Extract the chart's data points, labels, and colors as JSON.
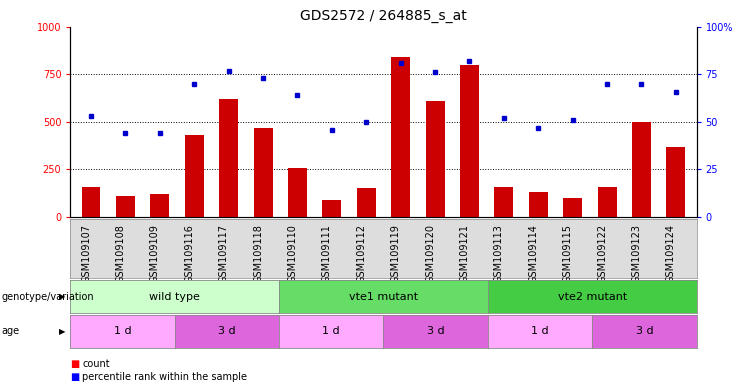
{
  "title": "GDS2572 / 264885_s_at",
  "samples": [
    "GSM109107",
    "GSM109108",
    "GSM109109",
    "GSM109116",
    "GSM109117",
    "GSM109118",
    "GSM109110",
    "GSM109111",
    "GSM109112",
    "GSM109119",
    "GSM109120",
    "GSM109121",
    "GSM109113",
    "GSM109114",
    "GSM109115",
    "GSM109122",
    "GSM109123",
    "GSM109124"
  ],
  "counts": [
    155,
    110,
    120,
    430,
    620,
    470,
    255,
    90,
    150,
    840,
    610,
    800,
    155,
    130,
    100,
    160,
    500,
    370
  ],
  "percentiles": [
    53,
    44,
    44,
    70,
    77,
    73,
    64,
    46,
    50,
    81,
    76,
    82,
    52,
    47,
    51,
    70,
    70,
    66
  ],
  "genotype_groups": [
    {
      "label": "wild type",
      "start": 0,
      "end": 6,
      "color": "#ccffcc"
    },
    {
      "label": "vte1 mutant",
      "start": 6,
      "end": 12,
      "color": "#66dd66"
    },
    {
      "label": "vte2 mutant",
      "start": 12,
      "end": 18,
      "color": "#44cc44"
    }
  ],
  "age_groups": [
    {
      "label": "1 d",
      "start": 0,
      "end": 3,
      "color": "#ffaaff"
    },
    {
      "label": "3 d",
      "start": 3,
      "end": 6,
      "color": "#dd66dd"
    },
    {
      "label": "1 d",
      "start": 6,
      "end": 9,
      "color": "#ffaaff"
    },
    {
      "label": "3 d",
      "start": 9,
      "end": 12,
      "color": "#dd66dd"
    },
    {
      "label": "1 d",
      "start": 12,
      "end": 15,
      "color": "#ffaaff"
    },
    {
      "label": "3 d",
      "start": 15,
      "end": 18,
      "color": "#dd66dd"
    }
  ],
  "bar_color": "#cc0000",
  "dot_color": "#0000cc",
  "ylim_left": [
    0,
    1000
  ],
  "ylim_right": [
    0,
    100
  ],
  "yticks_left": [
    0,
    250,
    500,
    750,
    1000
  ],
  "ytick_labels_left": [
    "0",
    "250",
    "500",
    "750",
    "1000"
  ],
  "yticks_right": [
    0,
    25,
    50,
    75,
    100
  ],
  "ytick_labels_right": [
    "0",
    "25",
    "50",
    "75",
    "100%"
  ],
  "background_color": "#ffffff",
  "title_fontsize": 10,
  "tick_fontsize": 7,
  "panel_fontsize": 8,
  "legend_fontsize": 8
}
